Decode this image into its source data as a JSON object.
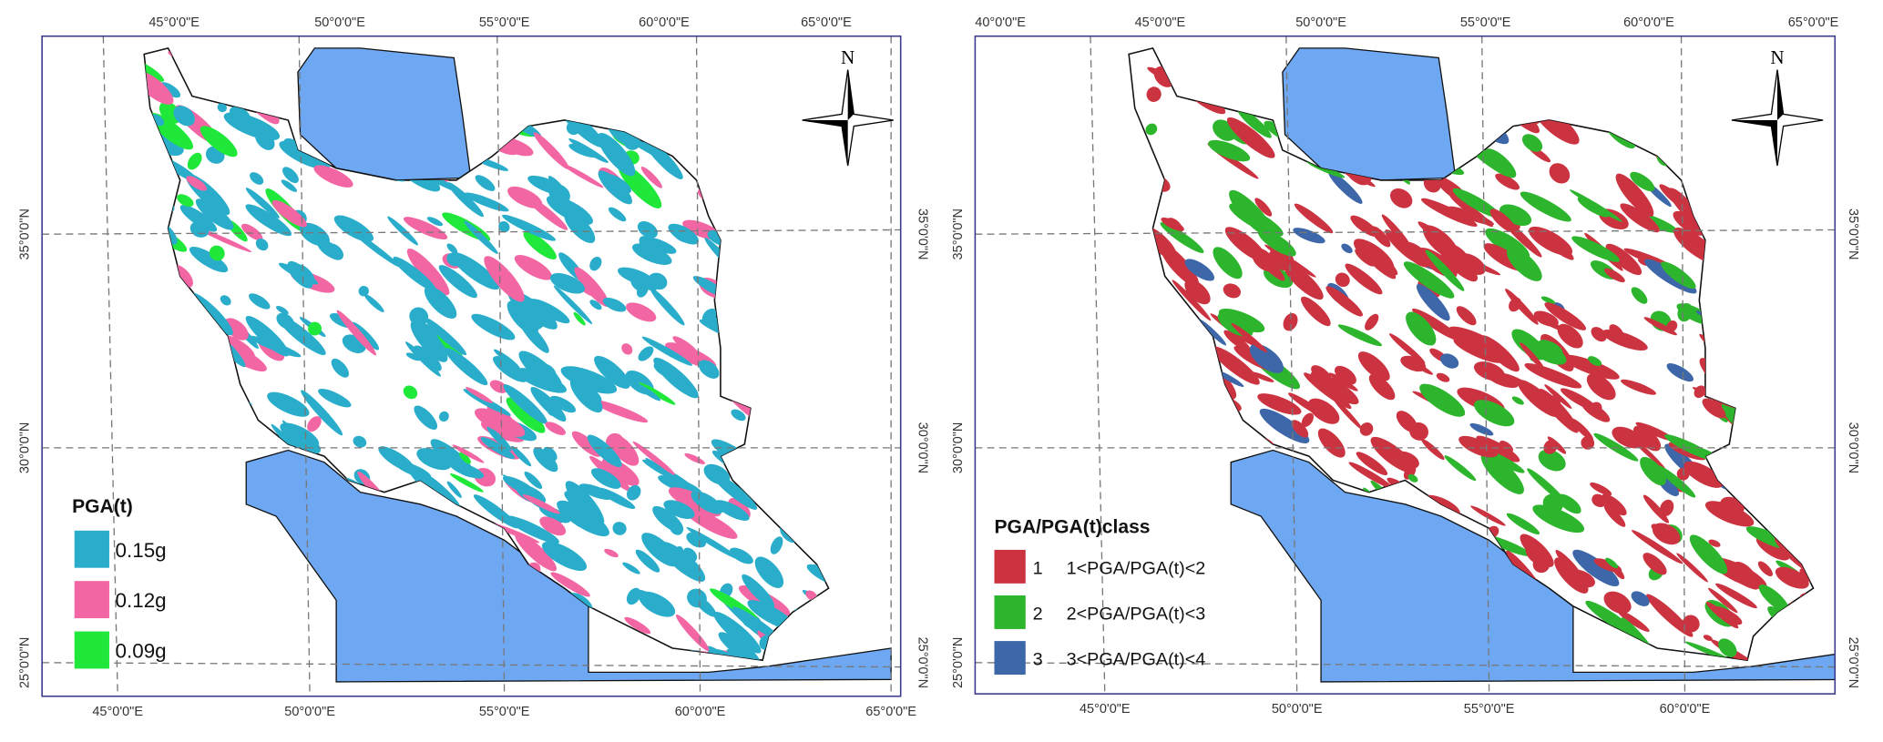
{
  "maps": [
    {
      "top_labels": [
        "45°0'0\"E",
        "50°0'0\"E",
        "55°0'0\"E",
        "60°0'0\"E",
        "65°0'0\"E"
      ],
      "bottom_labels": [
        "45°0'0\"E",
        "50°0'0\"E",
        "55°0'0\"E",
        "60°0'0\"E",
        "65°0'0\"E"
      ],
      "left_labels": [
        "35°0'0\"N",
        "30°0'0\"N",
        "25°0'0\"N"
      ],
      "right_labels": [
        "35°0'0\"N",
        "30°0'0\"N",
        "25°0'0\"N"
      ],
      "north": "N",
      "legend": {
        "title": "PGA(t)",
        "items": [
          {
            "label": "0.15g",
            "color": "#2aadca"
          },
          {
            "label": "0.12g",
            "color": "#f266a4"
          },
          {
            "label": "0.09g",
            "color": "#1fe83a"
          }
        ]
      }
    },
    {
      "top_labels": [
        "40°0'0\"E",
        "45°0'0\"E",
        "50°0'0\"E",
        "55°0'0\"E",
        "60°0'0\"E",
        "65°0'0\"E"
      ],
      "bottom_labels": [
        "45°0'0\"E",
        "50°0'0\"E",
        "55°0'0\"E",
        "60°0'0\"E"
      ],
      "left_labels": [
        "35°0'0\"N",
        "30°0'0\"N",
        "25°0'0\"N"
      ],
      "right_labels": [
        "35°0'0\"N",
        "30°0'0\"N",
        "25°0'0\"N"
      ],
      "north": "N",
      "legend": {
        "title": "PGA/PGA(t)class",
        "items": [
          {
            "class": "1",
            "label": "1<PGA/PGA(t)<2",
            "color": "#cc3340"
          },
          {
            "class": "2",
            "label": "2<PGA/PGA(t)<3",
            "color": "#2db52d"
          },
          {
            "class": "3",
            "label": "3<PGA/PGA(t)<4",
            "color": "#3d67a8"
          }
        ]
      }
    }
  ]
}
